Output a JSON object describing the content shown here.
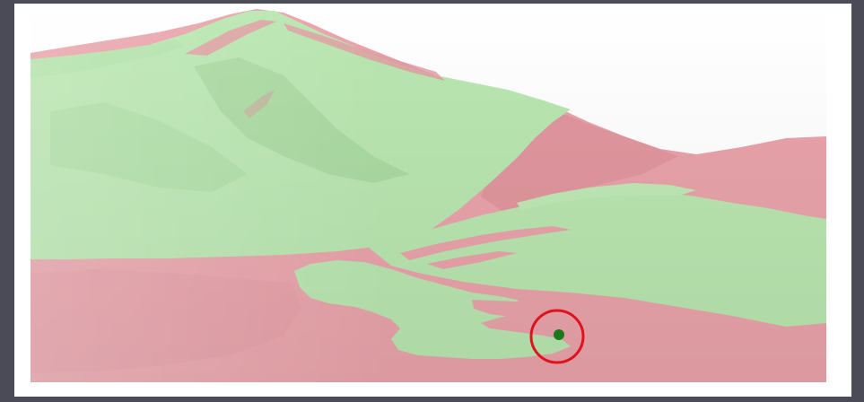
{
  "viewshed": {
    "colors": {
      "visible": "#b9e6b0",
      "visible_shade": "#9fd196",
      "not_visible": "#e9a3aa",
      "not_visible_shade": "#d68b94",
      "frame_bg": "#4a4b56",
      "canvas_bg": "#ffffff",
      "marker_ring": "#e0121e",
      "observer_point": "#1a7a1a"
    },
    "marker": {
      "icon": "observer-location-icon",
      "ring": "target-circle-icon"
    }
  }
}
